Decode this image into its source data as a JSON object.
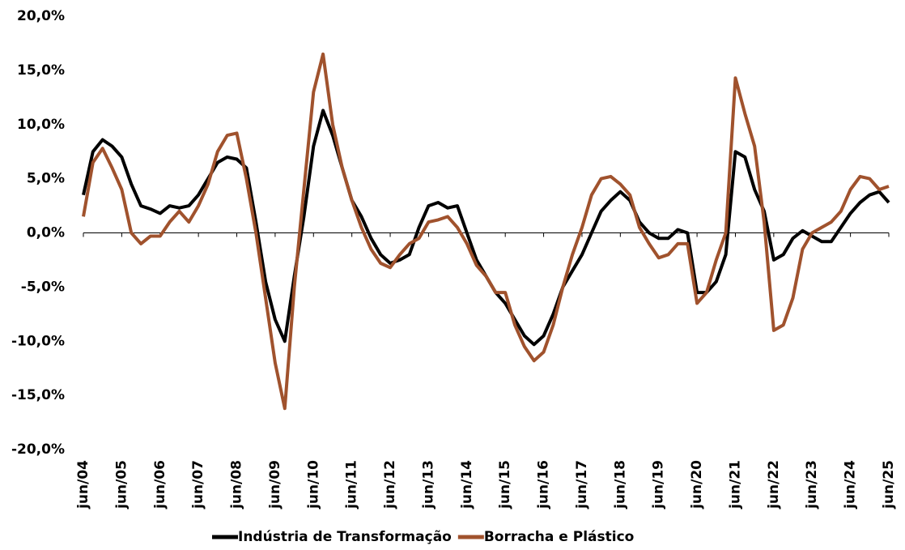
{
  "chart_data": {
    "type": "line",
    "categories": [
      "jun/04",
      null,
      null,
      null,
      "jun/05",
      null,
      null,
      null,
      "jun/06",
      null,
      null,
      null,
      "jun/07",
      null,
      null,
      null,
      "jun/08",
      null,
      null,
      null,
      "jun/09",
      null,
      null,
      null,
      "jun/10",
      null,
      null,
      null,
      "jun/11",
      null,
      null,
      null,
      "jun/12",
      null,
      null,
      null,
      "jun/13",
      null,
      null,
      null,
      "jun/14",
      null,
      null,
      null,
      "jun/15",
      null,
      null,
      null,
      "jun/16",
      null,
      null,
      null,
      "jun/17",
      null,
      null,
      null,
      "jun/18",
      null,
      null,
      null,
      "jun/19",
      null,
      null,
      null,
      "jun/20",
      null,
      null,
      null,
      "jun/21",
      null,
      null,
      null,
      "jun/22",
      null,
      null,
      null,
      "jun/23",
      null,
      null,
      null,
      "jun/24",
      null,
      null,
      null,
      "jun/25"
    ],
    "series": [
      {
        "name": "Indústria de Transformação",
        "color": "#000000",
        "values": [
          3.5,
          7.5,
          8.6,
          8.0,
          7.0,
          4.5,
          2.5,
          2.2,
          1.8,
          2.5,
          2.3,
          2.5,
          3.5,
          5.0,
          6.5,
          7.0,
          6.8,
          6.0,
          1.0,
          -4.5,
          -8.0,
          -10.0,
          -4.0,
          1.5,
          8.0,
          11.3,
          9.0,
          6.0,
          3.0,
          1.5,
          -0.5,
          -2.0,
          -2.8,
          -2.5,
          -2.0,
          0.5,
          2.5,
          2.8,
          2.3,
          2.5,
          0.0,
          -2.5,
          -4.0,
          -5.5,
          -6.5,
          -8.0,
          -9.5,
          -10.3,
          -9.5,
          -7.5,
          -5.0,
          -3.5,
          -2.0,
          0.0,
          2.0,
          3.0,
          3.8,
          3.0,
          1.0,
          0.0,
          -0.5,
          -0.5,
          0.3,
          0.0,
          -5.5,
          -5.5,
          -4.5,
          -2.0,
          7.5,
          7.0,
          4.0,
          2.0,
          -2.5,
          -2.0,
          -0.5,
          0.2,
          -0.3,
          -0.8,
          -0.8,
          0.5,
          1.8,
          2.8,
          3.5,
          3.8,
          2.8
        ]
      },
      {
        "name": "Borracha e Plástico",
        "color": "#a0522d",
        "values": [
          1.5,
          6.5,
          7.8,
          6.0,
          4.0,
          0.0,
          -1.0,
          -0.3,
          -0.3,
          1.0,
          2.0,
          1.0,
          2.5,
          4.5,
          7.5,
          9.0,
          9.2,
          5.0,
          0.0,
          -6.0,
          -12.0,
          -16.2,
          -5.0,
          4.0,
          13.0,
          16.5,
          10.0,
          6.0,
          3.0,
          0.5,
          -1.5,
          -2.8,
          -3.2,
          -2.0,
          -1.0,
          -0.5,
          1.0,
          1.2,
          1.5,
          0.5,
          -1.0,
          -3.0,
          -4.0,
          -5.5,
          -5.5,
          -8.5,
          -10.5,
          -11.8,
          -11.0,
          -8.5,
          -5.0,
          -2.0,
          0.5,
          3.5,
          5.0,
          5.2,
          4.5,
          3.5,
          0.5,
          -1.0,
          -2.3,
          -2.0,
          -1.0,
          -1.0,
          -6.5,
          -5.5,
          -2.5,
          0.0,
          14.3,
          11.0,
          8.0,
          1.0,
          -9.0,
          -8.5,
          -6.0,
          -1.5,
          0.0,
          0.5,
          1.0,
          2.0,
          4.0,
          5.2,
          5.0,
          4.0,
          4.3
        ]
      }
    ],
    "ylim": [
      -20,
      20
    ],
    "yticks": [
      {
        "value": -20,
        "label": "-20,0%"
      },
      {
        "value": -15,
        "label": "-15,0%"
      },
      {
        "value": -10,
        "label": "-10,0%"
      },
      {
        "value": -5,
        "label": "-5,0%"
      },
      {
        "value": 0,
        "label": "0,0%"
      },
      {
        "value": 5,
        "label": "5,0%"
      },
      {
        "value": 10,
        "label": "10,0%"
      },
      {
        "value": 15,
        "label": "15,0%"
      },
      {
        "value": 20,
        "label": "20,0%"
      }
    ],
    "legend": "bottom"
  }
}
